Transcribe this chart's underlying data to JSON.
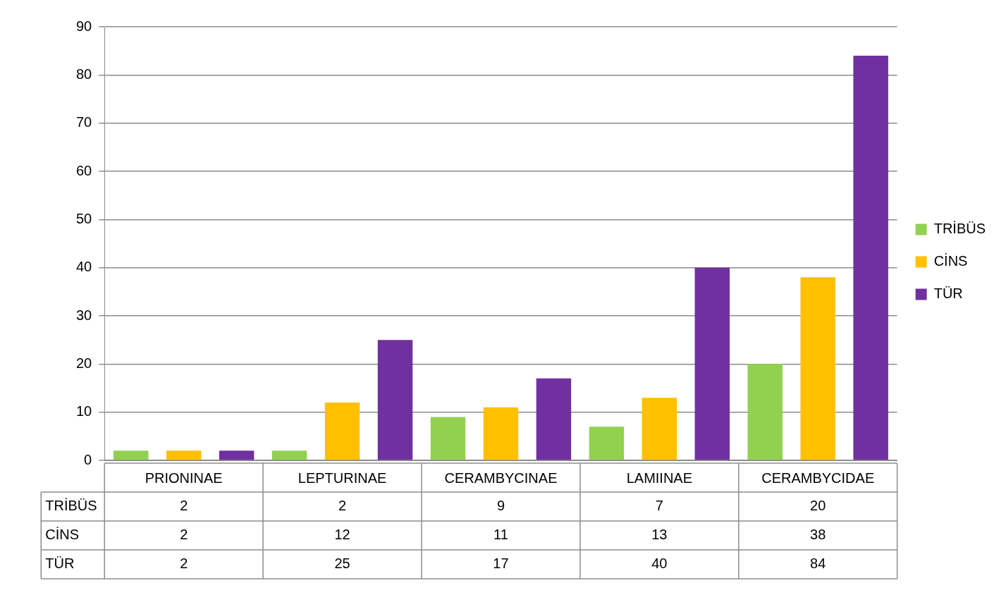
{
  "chart_data": {
    "type": "bar",
    "categories": [
      "PRIONINAE",
      "LEPTURINAE",
      "CERAMBYCINAE",
      "LAMIINAE",
      "CERAMBYCIDAE"
    ],
    "series": [
      {
        "name": "TRİBÜS",
        "color": "#92d050",
        "values": [
          2,
          2,
          9,
          7,
          20
        ]
      },
      {
        "name": "CİNS",
        "color": "#ffc000",
        "values": [
          2,
          12,
          11,
          13,
          38
        ]
      },
      {
        "name": "TÜR",
        "color": "#7030a0",
        "values": [
          2,
          25,
          17,
          40,
          84
        ]
      }
    ],
    "ylim": [
      0,
      90
    ],
    "yticks": [
      0,
      10,
      20,
      30,
      40,
      50,
      60,
      70,
      80,
      90
    ],
    "grid": "y",
    "legend": "right",
    "data_labels": true
  }
}
